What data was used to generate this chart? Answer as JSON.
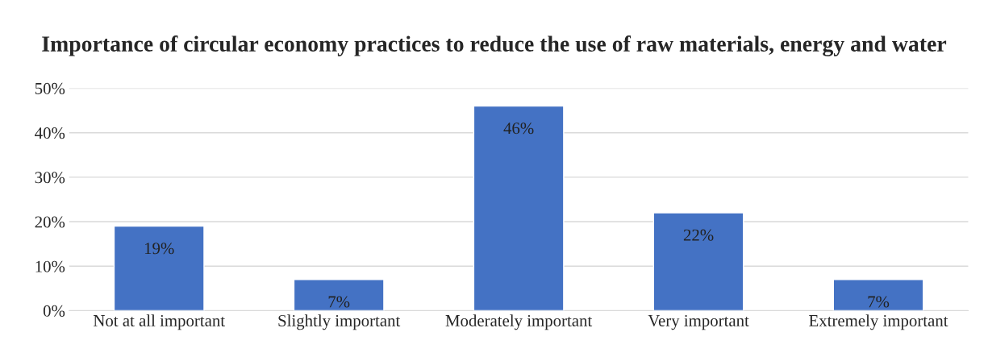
{
  "chart_data": {
    "type": "bar",
    "title": "Importance of circular economy practices to reduce the use of raw materials, energy and water",
    "categories": [
      "Not at all important",
      "Slightly important",
      "Moderately important",
      "Very important",
      "Extremely important"
    ],
    "values": [
      19,
      7,
      46,
      22,
      7
    ],
    "value_labels": [
      "19%",
      "7%",
      "46%",
      "22%",
      "7%"
    ],
    "color": "#4472c4",
    "ylim": [
      0,
      50
    ],
    "yticks": [
      {
        "value": 0,
        "label": "0%"
      },
      {
        "value": 10,
        "label": "10%"
      },
      {
        "value": 20,
        "label": "20%"
      },
      {
        "value": 30,
        "label": "30%"
      },
      {
        "value": 40,
        "label": "40%"
      },
      {
        "value": 50,
        "label": "50%"
      }
    ],
    "grid": "y"
  }
}
